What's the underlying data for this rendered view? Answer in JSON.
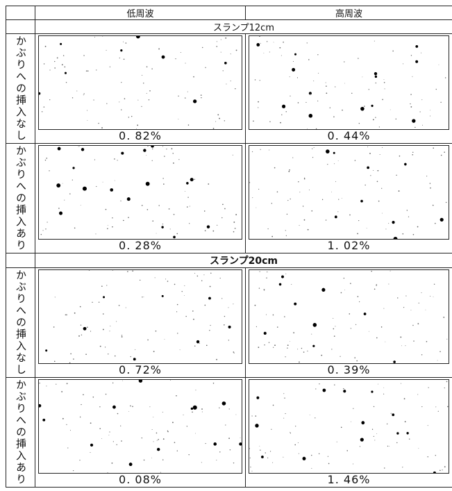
{
  "header": {
    "columns": [
      "低周波",
      "高周波"
    ]
  },
  "sections": [
    {
      "title": "スランプ12cm",
      "bold": false,
      "rows": [
        {
          "label": "かぶりへの挿入なし",
          "values": [
            "0. 82%",
            "0. 44%"
          ]
        },
        {
          "label": "かぶりへの挿入あり",
          "values": [
            "0. 28%",
            "1. 02%"
          ]
        }
      ]
    },
    {
      "title": "スランプ20cm",
      "bold": true,
      "rows": [
        {
          "label": "かぶりへの挿入なし",
          "values": [
            "0. 72%",
            "0. 39%"
          ]
        },
        {
          "label": "かぶりへの挿入あり",
          "values": [
            "0. 08%",
            "1. 46%"
          ]
        }
      ]
    }
  ]
}
